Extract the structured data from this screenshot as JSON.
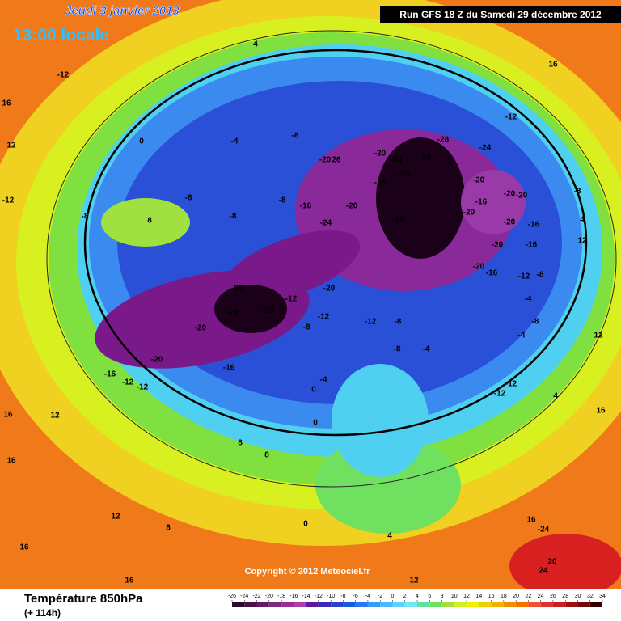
{
  "header": {
    "date": "Jeudi 3 janvier 2013",
    "time": "13:00 locale",
    "run": "Run GFS 18 Z du Samedi 29 décembre 2012"
  },
  "map": {
    "copyright": "Copyright © 2012 Meteociel.fr",
    "contour_labels": [
      "4",
      "-12",
      "16",
      "16",
      "12",
      "0",
      "-12",
      "-4",
      "-8",
      "-28",
      "-24",
      "-20",
      "-20",
      "26",
      "-24",
      "-28",
      "-24",
      "-28",
      "-20",
      "-16",
      "-20",
      "-20",
      "-8",
      "-12",
      "-8",
      "-8",
      "-16",
      "-20",
      "-24",
      "-28",
      "8",
      "-8",
      "-8",
      "-20",
      "-20",
      "-16",
      "4",
      "12",
      "-20",
      "-16",
      "-20",
      "-16",
      "-12",
      "-8",
      "-28",
      "-20",
      "-12",
      "-24",
      "-28",
      "-12",
      "-12",
      "-8",
      "-20",
      "-8",
      "-4",
      "-8",
      "-4",
      "12",
      "-20",
      "-16",
      "-8",
      "-4",
      "-16",
      "-12",
      "-12",
      "-4",
      "0",
      "-12",
      "-12",
      "4",
      "16",
      "12",
      "0",
      "16",
      "8",
      "8",
      "16",
      "12",
      "8",
      "0",
      "16",
      "4",
      "16",
      "-24",
      "20",
      "24",
      "12",
      "16"
    ]
  },
  "legend": {
    "title": "Température 850hPa",
    "lead_time": "(+ 114h)",
    "ticks": [
      -26,
      -24,
      -22,
      -20,
      -18,
      -16,
      -14,
      -12,
      -10,
      -8,
      -6,
      -4,
      -2,
      0,
      2,
      4,
      6,
      8,
      10,
      12,
      14,
      16,
      18,
      20,
      22,
      24,
      26,
      28,
      30,
      32,
      34
    ],
    "colors": [
      "#2d0a2d",
      "#4b0e4b",
      "#661a66",
      "#7f2a7f",
      "#992e99",
      "#b03cb0",
      "#5a1a9a",
      "#3a2ab8",
      "#2a40d0",
      "#1a5ae0",
      "#2a78f0",
      "#3a9af8",
      "#4ab8ff",
      "#60d0ff",
      "#70e8f0",
      "#60e0a0",
      "#70e060",
      "#a0e040",
      "#d0f020",
      "#f0f000",
      "#f0d000",
      "#f0b000",
      "#f09000",
      "#f07000",
      "#f05030",
      "#e03030",
      "#c82020",
      "#a01010",
      "#700808",
      "#300000"
    ]
  }
}
